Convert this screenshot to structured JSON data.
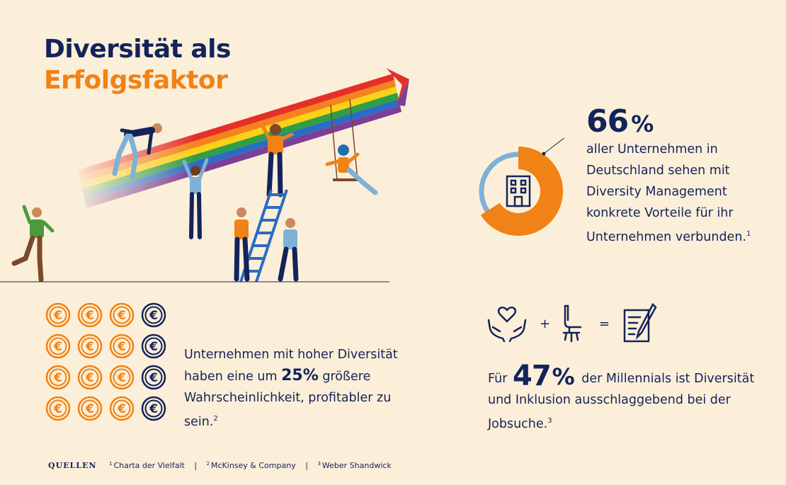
{
  "title": {
    "line1": "Diversität als",
    "line2": "Erfolgsfaktor"
  },
  "stat_66": {
    "value": "66",
    "unit": "%",
    "text": "aller Unternehmen in Deutschland sehen mit Diversity Management konkrete Vorteile für ihr Unternehmen verbunden.",
    "footnote": "1",
    "share": 0.66
  },
  "stat_25": {
    "text_before": "Unternehmen mit hoher Diversität haben eine um",
    "value": "25%",
    "text_after": "größere Wahrscheinlichkeit, profitabler zu sein.",
    "footnote": "2",
    "coin_symbol": "€",
    "coins_highlighted": 12,
    "coins_total": 16
  },
  "stat_47": {
    "equation_plus": "+",
    "equation_equals": "=",
    "prefix": "Für",
    "value": "47",
    "unit": "%",
    "text_after": "der Millennials ist Diversität und Inklusion ausschlaggebend bei der Jobsuche.",
    "footnote": "3"
  },
  "sources": {
    "label": "QUELLEN",
    "items": [
      {
        "ref": "1",
        "name": "Charta der Vielfalt"
      },
      {
        "ref": "2",
        "name": "McKinsey & Company"
      },
      {
        "ref": "3",
        "name": "Weber Shandwick"
      }
    ],
    "separator": "|"
  },
  "colors": {
    "background": "#fcefd9",
    "navy": "#13235b",
    "orange": "#f08216",
    "light_blue": "#7eb1d8",
    "green": "#4c9a3c",
    "brown": "#7a4a2a"
  },
  "icons": [
    "building-icon",
    "euro-coin-icon",
    "heart-hands-icon",
    "office-chair-icon",
    "document-pen-icon",
    "rainbow-arrow",
    "ladder",
    "swing"
  ]
}
